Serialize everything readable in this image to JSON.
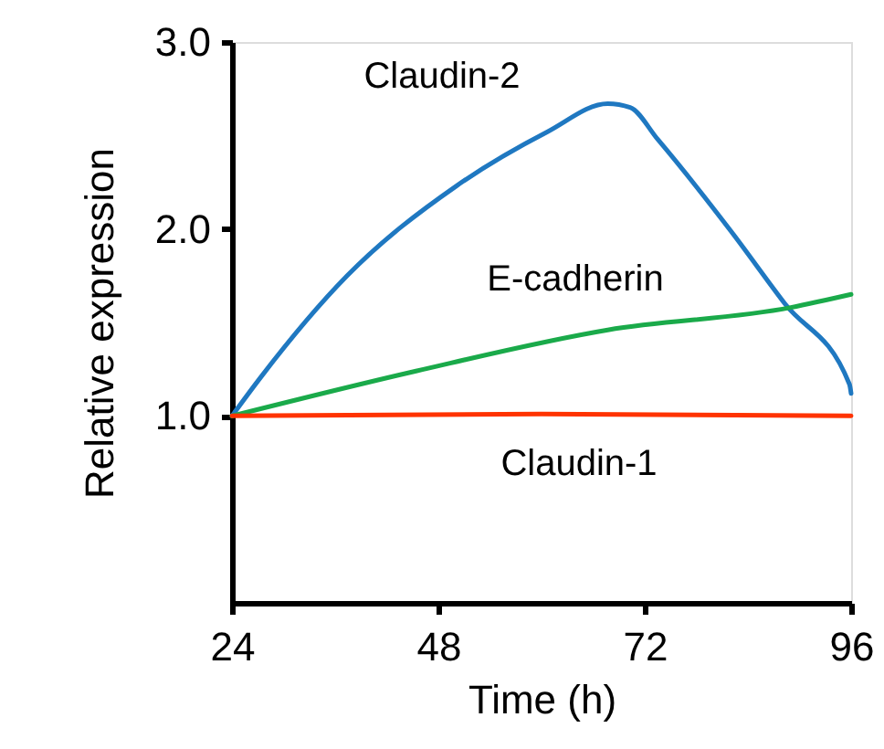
{
  "chart_data": {
    "type": "line",
    "xlabel": "Time  (h)",
    "ylabel": "Relative expression",
    "xlim": [
      24,
      96
    ],
    "xticks": [
      24,
      48,
      72,
      96
    ],
    "ylim": [
      0,
      3
    ],
    "yticks": [
      {
        "value": 1,
        "label": "1.0"
      },
      {
        "value": 2,
        "label": "2.0"
      },
      {
        "value": 3,
        "label": "3.0"
      }
    ],
    "grid": false,
    "marker": "none",
    "line_style": "solid",
    "series": [
      {
        "color": "#1f78c1",
        "x": [
          24,
          27.4,
          37.4,
          50.1,
          60.7,
          67.7,
          70.3,
          73.5,
          82,
          88.3,
          95.8,
          96
        ],
        "values": [
          1.0,
          1.21,
          1.75,
          2.23,
          2.52,
          2.67,
          2.65,
          2.48,
          1.99,
          1.6,
          1.17,
          1.12
        ]
      },
      {
        "color": "#1aaa4a",
        "x": [
          24,
          45.4,
          67.7,
          89,
          96
        ],
        "values": [
          1.0,
          1.24,
          1.46,
          1.58,
          1.65
        ]
      },
      {
        "color": "#ff3300",
        "x": [
          24,
          60,
          96
        ],
        "values": [
          1.0,
          1.01,
          1.0
        ]
      }
    ],
    "annotations": [
      "Claudin-2",
      "E-cadherin",
      "Claudin-1"
    ]
  }
}
